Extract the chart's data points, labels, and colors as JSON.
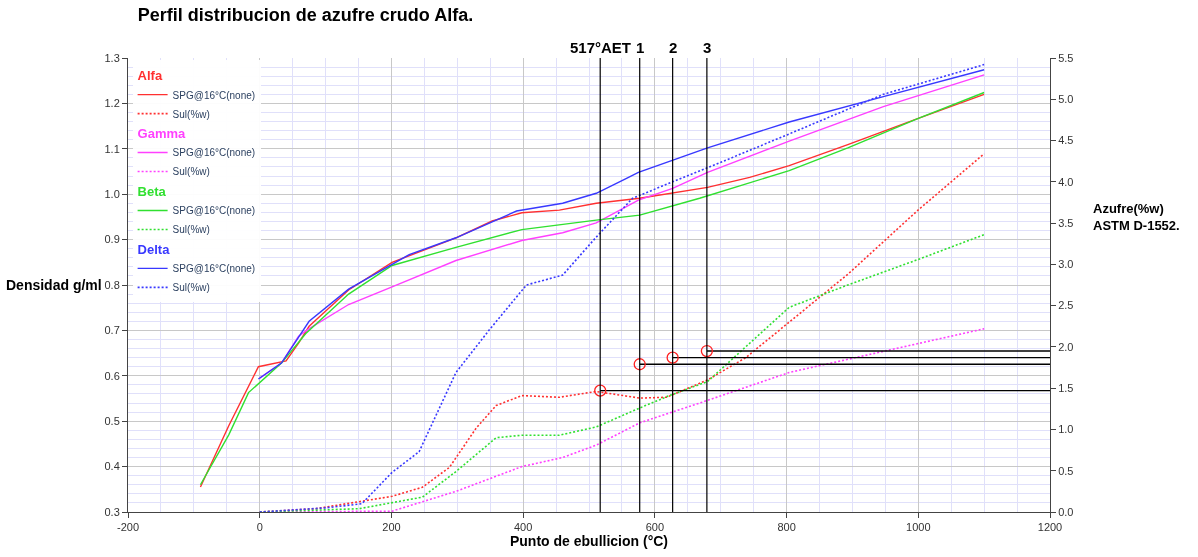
{
  "chart_data": {
    "type": "line",
    "title": "Perfil distribucion de azufre crudo Alfa.",
    "xlabel": "Punto de ebullicion (°C)",
    "ylabel": "Densidad g/ml",
    "y2label": "Azufre(%w)\nASTM D-1552.",
    "xlim": [
      -200,
      1200
    ],
    "xticks": [
      -200,
      0,
      200,
      400,
      600,
      800,
      1000,
      1200
    ],
    "ylim": [
      0.3,
      1.3
    ],
    "yticks": [
      0.3,
      0.4,
      0.5,
      0.6,
      0.7,
      0.8,
      0.9,
      {
        "value": 1,
        "label": "1.0"
      },
      1.1,
      1.2,
      1.3
    ],
    "y2lim": [
      0,
      5.5
    ],
    "y2ticks": [
      {
        "value": 0,
        "label": "0.0"
      },
      0.5,
      {
        "value": 1,
        "label": "1.0"
      },
      1.5,
      {
        "value": 2,
        "label": "2.0"
      },
      2.5,
      {
        "value": 3,
        "label": "3.0"
      },
      3.5,
      {
        "value": 4,
        "label": "4.0"
      },
      4.5,
      {
        "value": 5,
        "label": "5.0"
      },
      5.5
    ],
    "grid": true,
    "legend": "top left",
    "annotations": [
      "Alfa",
      "Gamma",
      "Beta",
      "Delta",
      {
        "text": "1",
        "x": 577,
        "y": 1.3
      },
      {
        "text": "2",
        "x": 627,
        "y": 1.3
      },
      {
        "text": "3",
        "x": 679,
        "y": 1.3
      }
    ],
    "ref_lines": [
      {
        "axis": "x",
        "value": 517,
        "label": "517°AET",
        "color": "#000000"
      },
      {
        "axis": "x",
        "value": 577,
        "color": "#000000"
      },
      {
        "axis": "x",
        "value": 627,
        "color": "#000000"
      },
      {
        "axis": "x",
        "value": 679,
        "color": "#000000"
      }
    ],
    "series": [
      {
        "name": "SPG@16°C(none)",
        "color": "#ff3030",
        "line_style": "solid",
        "x": [
          -90,
          -47,
          -2,
          40,
          59,
          75,
          135,
          201,
          298,
          353,
          398,
          455,
          511,
          577,
          680,
          744,
          804,
          893,
          1000,
          1100
        ],
        "values": [
          0.355,
          0.49,
          0.62,
          0.633,
          0.672,
          0.709,
          0.789,
          0.85,
          0.904,
          0.941,
          0.959,
          0.965,
          0.98,
          0.991,
          1.015,
          1.037,
          1.063,
          1.109,
          1.167,
          1.22
        ]
      },
      {
        "name": "Sul(%w)",
        "axis": "y2",
        "color": "#ff3030",
        "line_style": "dotted",
        "x": [
          0,
          85,
          201,
          247,
          288,
          329,
          359,
          398,
          455,
          511,
          577,
          618,
          680,
          738,
          893,
          1000,
          1100
        ],
        "values": [
          0,
          0.04,
          0.19,
          0.3,
          0.54,
          1.02,
          1.29,
          1.41,
          1.39,
          1.46,
          1.38,
          1.39,
          1.6,
          1.87,
          2.88,
          3.66,
          4.34
        ]
      },
      {
        "name": "SPG@16°C(none)",
        "color": "#ff40ff",
        "line_style": "solid",
        "x": [
          0,
          33,
          59,
          75,
          135,
          201,
          298,
          398,
          460,
          511,
          575,
          627,
          680,
          804,
          947,
          1100
        ],
        "values": [
          0.595,
          0.628,
          0.687,
          0.704,
          0.757,
          0.796,
          0.854,
          0.898,
          0.915,
          0.937,
          0.987,
          1.013,
          1.048,
          1.117,
          1.193,
          1.263
        ]
      },
      {
        "name": "Sul(%w)",
        "axis": "y2",
        "color": "#ff40ff",
        "line_style": "dotted",
        "x": [
          0,
          201,
          298,
          398,
          460,
          511,
          577,
          668,
          804,
          1100
        ],
        "values": [
          0,
          0.01,
          0.25,
          0.55,
          0.66,
          0.81,
          1.08,
          1.32,
          1.69,
          2.22
        ]
      },
      {
        "name": "SPG@16°C(none)",
        "color": "#30e030",
        "line_style": "solid",
        "x": [
          -90,
          -47,
          -17,
          33,
          70,
          135,
          201,
          298,
          398,
          511,
          577,
          668,
          804,
          893,
          1000,
          1100
        ],
        "values": [
          0.36,
          0.47,
          0.563,
          0.628,
          0.693,
          0.78,
          0.843,
          0.883,
          0.922,
          0.943,
          0.954,
          0.991,
          1.052,
          1.102,
          1.167,
          1.224
        ]
      },
      {
        "name": "Sul(%w)",
        "axis": "y2",
        "color": "#30e030",
        "line_style": "dotted",
        "x": [
          0,
          151,
          247,
          298,
          359,
          398,
          455,
          511,
          577,
          622,
          680,
          804,
          893,
          1000,
          1100
        ],
        "values": [
          0,
          0.04,
          0.18,
          0.49,
          0.9,
          0.93,
          0.93,
          1.03,
          1.26,
          1.41,
          1.58,
          2.48,
          2.75,
          3.06,
          3.36
        ]
      },
      {
        "name": "SPG@16°C(none)",
        "color": "#3838ff",
        "line_style": "solid",
        "x": [
          -2,
          33,
          75,
          135,
          227,
          298,
          390,
          460,
          511,
          557,
          575,
          680,
          804,
          947,
          1100
        ],
        "values": [
          0.593,
          0.628,
          0.72,
          0.791,
          0.867,
          0.904,
          0.963,
          0.98,
          1.002,
          1.035,
          1.048,
          1.102,
          1.159,
          1.215,
          1.274
        ]
      },
      {
        "name": "Sul(%w)",
        "axis": "y2",
        "color": "#3838ff",
        "line_style": "dotted",
        "x": [
          0,
          100,
          155,
          201,
          242,
          298,
          349,
          405,
          460,
          511,
          566,
          627,
          680,
          804,
          947,
          1100
        ],
        "values": [
          0,
          0.05,
          0.1,
          0.48,
          0.73,
          1.69,
          2.21,
          2.75,
          2.87,
          3.33,
          3.8,
          4.0,
          4.17,
          4.58,
          5.06,
          5.42
        ]
      },
      {
        "axis": "y2",
        "color": "#000000",
        "line_style": "solid",
        "x": [
          517,
          1200
        ],
        "values": [
          1.47,
          1.47
        ]
      },
      {
        "axis": "y2",
        "color": "#000000",
        "line_style": "solid",
        "x": [
          577,
          1200
        ],
        "values": [
          1.79,
          1.79
        ]
      },
      {
        "axis": "y2",
        "color": "#000000",
        "line_style": "solid",
        "x": [
          627,
          1200
        ],
        "values": [
          1.87,
          1.87
        ]
      },
      {
        "axis": "y2",
        "color": "#000000",
        "line_style": "solid",
        "x": [
          679,
          1200
        ],
        "values": [
          1.95,
          1.95
        ]
      },
      {
        "type": "scatter",
        "axis": "y2",
        "color": "#ff2020",
        "marker": "circle",
        "x": [
          517,
          577,
          627,
          679
        ],
        "values": [
          1.47,
          1.79,
          1.87,
          1.95
        ]
      }
    ]
  }
}
